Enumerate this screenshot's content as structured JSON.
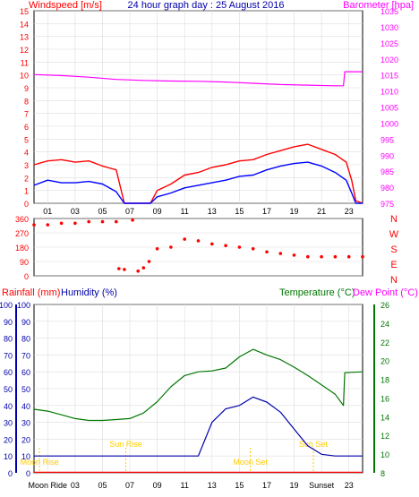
{
  "chart_data": [
    {
      "type": "line",
      "title": "24 hour graph day : 25 August 2016",
      "left_axis_label": "Windspeed [m/s]",
      "right_axis_label": "Barometer [hpa]",
      "left_ticks": [
        "0",
        "1",
        "2",
        "3",
        "4",
        "5",
        "6",
        "7",
        "8",
        "9",
        "10",
        "11",
        "12",
        "13",
        "14",
        "15"
      ],
      "right_ticks": [
        "975",
        "980",
        "985",
        "990",
        "995",
        "1000",
        "1005",
        "1010",
        "1015",
        "1020",
        "1025",
        "1030",
        "1035"
      ],
      "x_ticks": [
        "01",
        "03",
        "05",
        "07",
        "09",
        "11",
        "13",
        "15",
        "17",
        "19",
        "21",
        "23"
      ],
      "colors": {
        "gust": "#ff0000",
        "wind": "#0000ff",
        "barometer": "#ff00ff",
        "axis_left": "#ff0000",
        "axis_right": "#ff00ff"
      },
      "series": [
        {
          "key": "barometer",
          "values": [
            [
              0,
              1015.1
            ],
            [
              2,
              1014.8
            ],
            [
              4,
              1014.3
            ],
            [
              6,
              1013.6
            ],
            [
              8,
              1013.3
            ],
            [
              10,
              1013.1
            ],
            [
              12,
              1013.0
            ],
            [
              14,
              1012.8
            ],
            [
              16,
              1012.4
            ],
            [
              18,
              1012.0
            ],
            [
              20,
              1011.8
            ],
            [
              22,
              1011.6
            ],
            [
              22.6,
              1011.6
            ],
            [
              22.7,
              1016.0
            ],
            [
              24,
              1016.0
            ]
          ]
        },
        {
          "key": "gust",
          "values": [
            [
              0,
              3.0
            ],
            [
              1,
              3.3
            ],
            [
              2,
              3.4
            ],
            [
              3,
              3.2
            ],
            [
              4,
              3.3
            ],
            [
              5,
              2.9
            ],
            [
              6,
              2.6
            ],
            [
              6.6,
              0
            ],
            [
              8.5,
              0
            ],
            [
              9,
              1.0
            ],
            [
              10,
              1.5
            ],
            [
              11,
              2.2
            ],
            [
              12,
              2.4
            ],
            [
              13,
              2.8
            ],
            [
              14,
              3.0
            ],
            [
              15,
              3.3
            ],
            [
              16,
              3.4
            ],
            [
              17,
              3.8
            ],
            [
              18,
              4.1
            ],
            [
              19,
              4.4
            ],
            [
              20,
              4.6
            ],
            [
              21,
              4.2
            ],
            [
              22,
              3.8
            ],
            [
              22.8,
              3.2
            ],
            [
              23.2,
              1.8
            ],
            [
              23.5,
              0.2
            ],
            [
              24,
              0
            ]
          ]
        },
        {
          "key": "wind",
          "values": [
            [
              0,
              1.4
            ],
            [
              1,
              1.8
            ],
            [
              2,
              1.6
            ],
            [
              3,
              1.6
            ],
            [
              4,
              1.7
            ],
            [
              5,
              1.5
            ],
            [
              6,
              0.9
            ],
            [
              6.6,
              0
            ],
            [
              8.5,
              0
            ],
            [
              9,
              0.5
            ],
            [
              10,
              0.8
            ],
            [
              11,
              1.2
            ],
            [
              12,
              1.4
            ],
            [
              13,
              1.6
            ],
            [
              14,
              1.8
            ],
            [
              15,
              2.1
            ],
            [
              16,
              2.2
            ],
            [
              17,
              2.6
            ],
            [
              18,
              2.9
            ],
            [
              19,
              3.1
            ],
            [
              20,
              3.2
            ],
            [
              21,
              2.9
            ],
            [
              22,
              2.4
            ],
            [
              22.8,
              1.8
            ],
            [
              23.2,
              0.8
            ],
            [
              23.5,
              0
            ],
            [
              24,
              0
            ]
          ]
        }
      ]
    },
    {
      "type": "scatter",
      "ylabel": "Wind direction",
      "left_ticks": [
        "0",
        "90",
        "180",
        "270",
        "360"
      ],
      "compass": [
        "N",
        "W",
        "S",
        "E",
        "N"
      ],
      "point_color": "#ff0000",
      "values": [
        [
          0,
          320
        ],
        [
          1,
          320
        ],
        [
          2,
          330
        ],
        [
          3,
          330
        ],
        [
          4,
          340
        ],
        [
          5,
          340
        ],
        [
          6,
          340
        ],
        [
          6.2,
          45
        ],
        [
          6.6,
          40
        ],
        [
          7.2,
          350
        ],
        [
          7.6,
          30
        ],
        [
          8,
          50
        ],
        [
          8.4,
          90
        ],
        [
          9,
          170
        ],
        [
          10,
          180
        ],
        [
          11,
          230
        ],
        [
          12,
          220
        ],
        [
          13,
          200
        ],
        [
          14,
          190
        ],
        [
          15,
          180
        ],
        [
          16,
          170
        ],
        [
          17,
          150
        ],
        [
          18,
          140
        ],
        [
          19,
          130
        ],
        [
          20,
          120
        ],
        [
          21,
          120
        ],
        [
          22,
          120
        ],
        [
          23,
          120
        ],
        [
          24,
          120
        ]
      ]
    },
    {
      "type": "line",
      "left_axis_label": "Rainfall (mm)",
      "left_axis_label2": "Humidity (%)",
      "right_axis_label": "Temperature (°C)",
      "right_axis_label2": "Dew Point (°C)",
      "left_ticks": [
        "0",
        "10",
        "20",
        "30",
        "40",
        "50",
        "60",
        "70",
        "80",
        "90",
        "100"
      ],
      "right_ticks": [
        "8",
        "10",
        "12",
        "14",
        "16",
        "18",
        "20",
        "22",
        "24",
        "26"
      ],
      "x_ticks": [
        "Moon Ride",
        "03",
        "05",
        "07",
        "09",
        "11",
        "13",
        "15",
        "17",
        "19",
        "Sunset",
        "23"
      ],
      "annotations": [
        {
          "label": "Moon Rise",
          "x": 0.4,
          "kind": "moon"
        },
        {
          "label": "Sun Rise",
          "x": 6.7,
          "kind": "sun"
        },
        {
          "label": "Moon Set",
          "x": 15.8,
          "kind": "moon"
        },
        {
          "label": "Sun Set",
          "x": 20.4,
          "kind": "sun"
        }
      ],
      "colors": {
        "rain": "#ff0000",
        "humidity": "#0000aa",
        "temperature": "#007700",
        "dew": "#ff00ff",
        "annotation": "#ffcc00"
      },
      "series": [
        {
          "key": "temperature",
          "values": [
            [
              0,
              14.8
            ],
            [
              1,
              14.6
            ],
            [
              2,
              14.2
            ],
            [
              3,
              13.8
            ],
            [
              4,
              13.6
            ],
            [
              5,
              13.6
            ],
            [
              6,
              13.7
            ],
            [
              7,
              13.8
            ],
            [
              8,
              14.4
            ],
            [
              9,
              15.6
            ],
            [
              10,
              17.2
            ],
            [
              11,
              18.4
            ],
            [
              12,
              18.8
            ],
            [
              13,
              18.9
            ],
            [
              14,
              19.2
            ],
            [
              15,
              20.4
            ],
            [
              16,
              21.2
            ],
            [
              17,
              20.6
            ],
            [
              18,
              20.1
            ],
            [
              19,
              19.3
            ],
            [
              20,
              18.4
            ],
            [
              21,
              17.4
            ],
            [
              22,
              16.4
            ],
            [
              22.6,
              15.2
            ],
            [
              22.7,
              18.7
            ],
            [
              24,
              18.8
            ]
          ]
        },
        {
          "key": "humidity",
          "values": [
            [
              0,
              10
            ],
            [
              1,
              10
            ],
            [
              2,
              10
            ],
            [
              3,
              10
            ],
            [
              4,
              10
            ],
            [
              5,
              10
            ],
            [
              6,
              10
            ],
            [
              7,
              10
            ],
            [
              8,
              10
            ],
            [
              9,
              10
            ],
            [
              10,
              10
            ],
            [
              11,
              10
            ],
            [
              12,
              10
            ],
            [
              13,
              30
            ],
            [
              14,
              38
            ],
            [
              15,
              40
            ],
            [
              16,
              45
            ],
            [
              17,
              42
            ],
            [
              18,
              36
            ],
            [
              19,
              26
            ],
            [
              20,
              16
            ],
            [
              21,
              11
            ],
            [
              22,
              10
            ],
            [
              23,
              10
            ],
            [
              24,
              10
            ]
          ]
        },
        {
          "key": "rain",
          "values": [
            [
              0,
              0.3
            ],
            [
              24,
              0.3
            ]
          ]
        }
      ]
    }
  ]
}
